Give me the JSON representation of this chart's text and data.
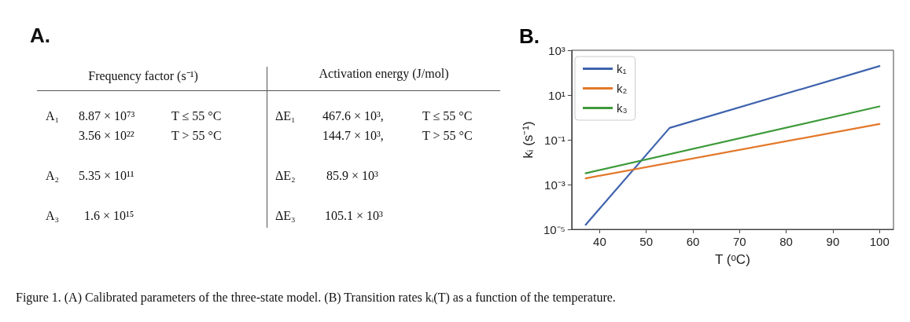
{
  "chart_data": [
    {
      "type": "other",
      "title": "A.",
      "annotations": [
        "Frequency factor (s⁻¹)",
        "Activation energy (J/mol)",
        "A₁",
        "8.87 × 10⁷³",
        "T ≤ 55 °C",
        "ΔE₁",
        "467.6 × 10³,",
        "T ≤ 55 °C",
        "3.56 × 10²²",
        "T > 55 °C",
        "144.7 × 10³,",
        "T > 55 °C",
        "A₂",
        "5.35 × 10¹¹",
        "ΔE₂",
        "85.9 × 10³",
        "A₃",
        "1.6 × 10¹⁵",
        "ΔE₃",
        "105.1 × 10³"
      ]
    },
    {
      "type": "line",
      "title": "B.",
      "xlabel": "T (ᵒC)",
      "ylabel": "kᵢ (s⁻¹)",
      "annotations": [
        "Figure 1. (A) Calibrated parameters of the three-state model. (B) Transition rates kᵢ(T) as a function of the temperature."
      ],
      "series": [
        {
          "name": "k₁",
          "color": "#3f63ad",
          "x": [
            37,
            55,
            100
          ],
          "values": [
            1.6e-05,
            0.34,
            196
          ]
        },
        {
          "name": "k₂",
          "color": "#e3782a",
          "x": [
            37,
            100
          ],
          "values": [
            0.0019,
            0.51
          ]
        },
        {
          "name": "k₃",
          "color": "#3d9a3a",
          "x": [
            37,
            100
          ],
          "values": [
            0.0032,
            3.1
          ]
        }
      ],
      "log": "y",
      "xlim": [
        34,
        103
      ],
      "xticks": [
        40,
        50,
        60,
        70,
        80,
        90,
        100
      ],
      "ylim": [
        1e-05,
        1000
      ],
      "yticks": [
        {
          "value": 1e-05,
          "label": "10⁻⁵"
        },
        {
          "value": 0.001,
          "label": "10⁻³"
        },
        {
          "value": 0.1,
          "label": "10⁻¹"
        },
        {
          "value": 10,
          "label": "10¹"
        },
        {
          "value": 1000,
          "label": "10³"
        }
      ],
      "grid": false,
      "legend": "top left",
      "marker": "none",
      "line_style": "solid"
    }
  ]
}
